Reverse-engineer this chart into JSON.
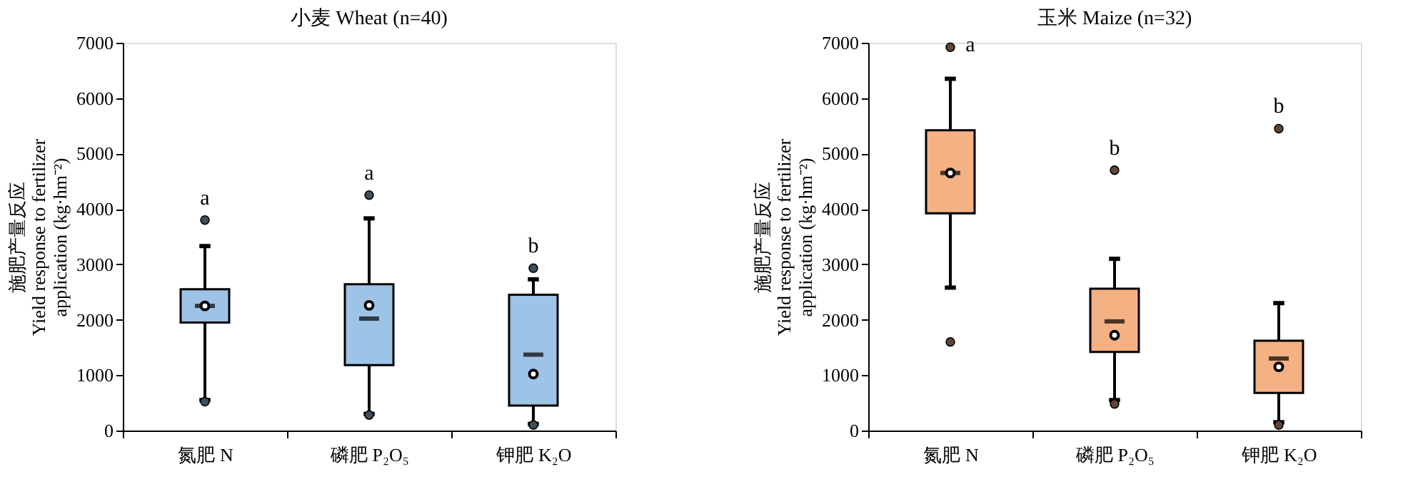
{
  "chart_data": [
    {
      "type": "box",
      "title": "小麦 Wheat (n=40)",
      "ylabel": "施肥产量反应 Yield response to fertilizer application (kg·hm⁻²)",
      "categories": [
        "氮肥 N",
        "磷肥 P₂O₅",
        "钾肥 K₂O"
      ],
      "ylim": [
        0,
        7000
      ],
      "yticks": [
        0,
        1000,
        2000,
        3000,
        4000,
        5000,
        6000,
        7000
      ],
      "grid": false,
      "series": [
        {
          "color": "#9dc3e6",
          "boxes": [
            {
              "low": 550,
              "q1": 1950,
              "median": 2250,
              "q3": 2550,
              "high": 3330,
              "mean": 2250,
              "outliers": [
                3800,
                520
              ]
            },
            {
              "low": 300,
              "q1": 1180,
              "median": 2020,
              "q3": 2640,
              "high": 3830,
              "mean": 2260,
              "outliers": [
                4250,
                280
              ]
            },
            {
              "low": 120,
              "q1": 450,
              "median": 1370,
              "q3": 2450,
              "high": 2730,
              "mean": 1020,
              "outliers": [
                2930,
                100
              ]
            }
          ]
        }
      ],
      "annotations": [
        "a",
        "a",
        "b"
      ]
    },
    {
      "type": "box",
      "title": "玉米 Maize (n=32)",
      "ylabel": "施肥产量反应 Yield response to fertilizer application (kg·hm⁻²)",
      "categories": [
        "氮肥 N",
        "磷肥 P₂O₅",
        "钾肥 K₂O"
      ],
      "ylim": [
        0,
        7000
      ],
      "yticks": [
        0,
        1000,
        2000,
        3000,
        4000,
        5000,
        6000,
        7000
      ],
      "grid": false,
      "series": [
        {
          "color": "#f4b183",
          "boxes": [
            {
              "low": 2580,
              "q1": 3920,
              "median": 4650,
              "q3": 5420,
              "high": 6350,
              "mean": 4650,
              "outliers": [
                6920,
                1600
              ]
            },
            {
              "low": 550,
              "q1": 1420,
              "median": 1970,
              "q3": 2560,
              "high": 3100,
              "mean": 1720,
              "outliers": [
                4700,
                480
              ]
            },
            {
              "low": 150,
              "q1": 680,
              "median": 1300,
              "q3": 1620,
              "high": 2300,
              "mean": 1150,
              "outliers": [
                5450,
                100
              ]
            }
          ]
        }
      ],
      "annotations": [
        "a",
        "b",
        "b"
      ]
    }
  ]
}
